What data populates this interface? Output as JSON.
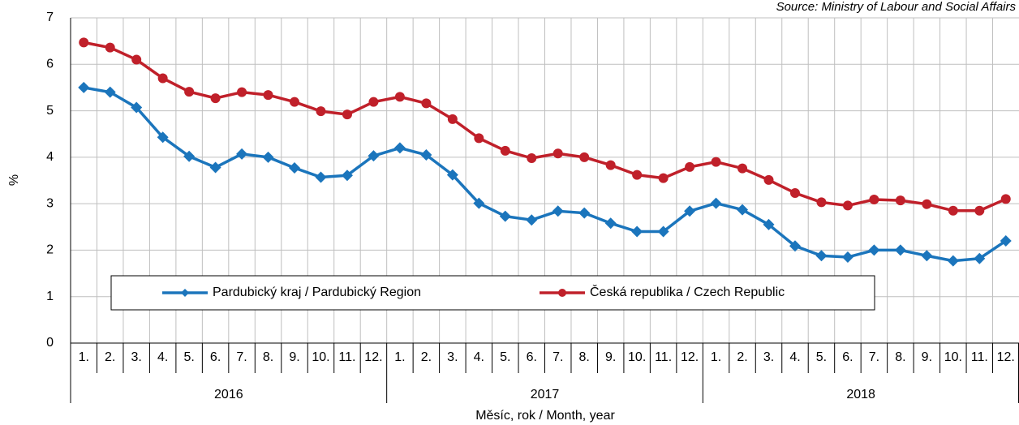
{
  "chart_data": {
    "type": "line",
    "source": "Source: Ministry of Labour and Social Affairs",
    "y_label": "%",
    "x_label": "Měsíc, rok / Month, year",
    "categories": [
      "1.",
      "2.",
      "3.",
      "4.",
      "5.",
      "6.",
      "7.",
      "8.",
      "9.",
      "10.",
      "11.",
      "12.",
      "1.",
      "2.",
      "3.",
      "4.",
      "5.",
      "6.",
      "7.",
      "8.",
      "9.",
      "10.",
      "11.",
      "12.",
      "1.",
      "2.",
      "3.",
      "4.",
      "5.",
      "6.",
      "7.",
      "8.",
      "9.",
      "10.",
      "11.",
      "12."
    ],
    "groups": [
      "2016",
      "2017",
      "2018"
    ],
    "series": [
      {
        "name": "Pardubický kraj / Pardubický Region",
        "color": "#1b75bc",
        "marker": "diamond",
        "values": [
          5.5,
          5.4,
          5.07,
          4.43,
          4.02,
          3.78,
          4.07,
          4.0,
          3.77,
          3.57,
          3.61,
          4.03,
          4.2,
          4.05,
          3.62,
          3.01,
          2.73,
          2.65,
          2.84,
          2.8,
          2.58,
          2.4,
          2.4,
          2.84,
          3.01,
          2.87,
          2.55,
          2.09,
          1.88,
          1.85,
          2.0,
          2.0,
          1.88,
          1.77,
          1.82,
          2.2
        ]
      },
      {
        "name": "Česká republika / Czech Republic",
        "color": "#c0202a",
        "marker": "circle",
        "values": [
          6.47,
          6.36,
          6.1,
          5.7,
          5.41,
          5.27,
          5.4,
          5.34,
          5.19,
          4.99,
          4.92,
          5.19,
          5.3,
          5.16,
          4.82,
          4.41,
          4.14,
          3.98,
          4.08,
          4.0,
          3.83,
          3.62,
          3.55,
          3.79,
          3.9,
          3.76,
          3.51,
          3.23,
          3.03,
          2.96,
          3.09,
          3.07,
          2.99,
          2.85,
          2.85,
          3.1
        ]
      }
    ],
    "ylim": [
      0,
      7
    ],
    "yticks": [
      0,
      1,
      2,
      3,
      4,
      5,
      6,
      7
    ],
    "grid": true
  }
}
